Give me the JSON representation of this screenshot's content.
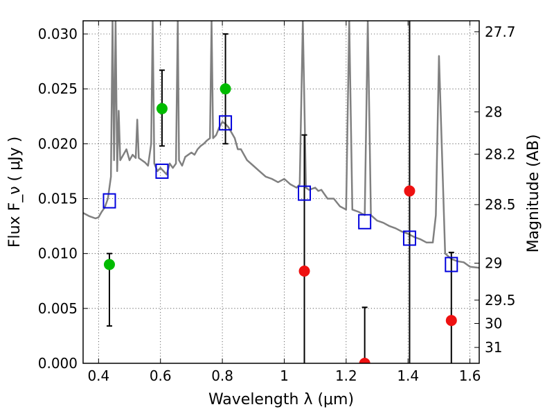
{
  "chart_data": {
    "type": "scatter",
    "xlabel": "Wavelength  λ (μm)",
    "ylabel": "Flux  F_ν  ( μJy )",
    "ylabel_right": "Magnitude (AB)",
    "xlim": [
      0.35,
      1.63
    ],
    "ylim": [
      0.0,
      0.0312
    ],
    "x_ticks": [
      0.4,
      0.6,
      0.8,
      1.0,
      1.2,
      1.4,
      1.6
    ],
    "x_tick_labels": [
      "0.4",
      "0.6",
      "0.8",
      "1",
      "1.2",
      "1.4",
      "1.6"
    ],
    "y_ticks": [
      0.0,
      0.005,
      0.01,
      0.015,
      0.02,
      0.025,
      0.03
    ],
    "y_tick_labels": [
      "0.000",
      "0.005",
      "0.010",
      "0.015",
      "0.020",
      "0.025",
      "0.030"
    ],
    "mag_ticks": [
      27.7,
      28,
      28.2,
      28.5,
      29,
      29.5,
      30,
      31
    ],
    "mag_tick_labels": [
      "27.7",
      "28",
      "28.2",
      "28.5",
      "29",
      "29.5",
      "30",
      "31"
    ],
    "grid": true,
    "colors": {
      "sed": "#808080",
      "detection": "#00bb00",
      "upper_limit": "#ee1111",
      "model": "#0000dd",
      "errorbar": "#000000"
    },
    "series": [
      {
        "type": "line",
        "color": "#808080",
        "x": [
          0.35,
          0.37,
          0.39,
          0.4,
          0.41,
          0.42,
          0.43,
          0.44,
          0.445,
          0.45,
          0.455,
          0.46,
          0.465,
          0.47,
          0.48,
          0.49,
          0.5,
          0.51,
          0.52,
          0.525,
          0.53,
          0.54,
          0.55,
          0.56,
          0.57,
          0.575,
          0.58,
          0.59,
          0.6,
          0.61,
          0.62,
          0.63,
          0.64,
          0.65,
          0.656,
          0.66,
          0.67,
          0.68,
          0.69,
          0.7,
          0.71,
          0.72,
          0.73,
          0.74,
          0.75,
          0.76,
          0.765,
          0.77,
          0.78,
          0.79,
          0.8,
          0.81,
          0.82,
          0.83,
          0.84,
          0.85,
          0.86,
          0.88,
          0.9,
          0.92,
          0.94,
          0.96,
          0.98,
          1.0,
          1.02,
          1.04,
          1.05,
          1.06,
          1.07,
          1.08,
          1.1,
          1.11,
          1.12,
          1.14,
          1.16,
          1.18,
          1.2,
          1.21,
          1.22,
          1.24,
          1.26,
          1.27,
          1.28,
          1.3,
          1.32,
          1.34,
          1.36,
          1.38,
          1.4,
          1.42,
          1.44,
          1.46,
          1.48,
          1.49,
          1.5,
          1.52,
          1.54,
          1.56,
          1.58,
          1.6,
          1.63
        ],
        "y": [
          0.0137,
          0.0134,
          0.0132,
          0.0133,
          0.0138,
          0.0142,
          0.015,
          0.017,
          0.0312,
          0.0185,
          0.0312,
          0.0175,
          0.023,
          0.0185,
          0.019,
          0.0195,
          0.0185,
          0.019,
          0.0187,
          0.0222,
          0.0187,
          0.0185,
          0.0183,
          0.018,
          0.02,
          0.0312,
          0.0182,
          0.0175,
          0.0178,
          0.0175,
          0.0172,
          0.0182,
          0.0178,
          0.0182,
          0.0312,
          0.0185,
          0.018,
          0.0188,
          0.019,
          0.0192,
          0.019,
          0.0195,
          0.0198,
          0.02,
          0.0203,
          0.0205,
          0.0312,
          0.0205,
          0.0208,
          0.0215,
          0.022,
          0.0218,
          0.0215,
          0.021,
          0.0205,
          0.0195,
          0.0195,
          0.0185,
          0.018,
          0.0175,
          0.017,
          0.0168,
          0.0165,
          0.0168,
          0.0163,
          0.016,
          0.0163,
          0.0312,
          0.016,
          0.0158,
          0.016,
          0.0157,
          0.0158,
          0.015,
          0.015,
          0.0143,
          0.014,
          0.0312,
          0.014,
          0.0138,
          0.0135,
          0.0312,
          0.0135,
          0.013,
          0.0128,
          0.0125,
          0.0123,
          0.012,
          0.0118,
          0.0115,
          0.0113,
          0.011,
          0.011,
          0.0135,
          0.028,
          0.01,
          0.0095,
          0.0093,
          0.0092,
          0.0088,
          0.0087
        ]
      },
      {
        "type": "scatter",
        "color": "#00bb00",
        "marker": "circle",
        "x": [
          0.435,
          0.605,
          0.81
        ],
        "y": [
          0.009,
          0.0232,
          0.025
        ],
        "yerr_low": [
          0.0034,
          0.0198,
          0.02
        ],
        "yerr_high": [
          0.01,
          0.0267,
          0.03
        ]
      },
      {
        "type": "scatter",
        "color": "#ee1111",
        "marker": "circle",
        "x": [
          1.065,
          1.26,
          1.405,
          1.54
        ],
        "y": [
          0.0084,
          0.0,
          0.0157,
          0.0039
        ],
        "yerr_low": [
          0.0,
          0.0,
          0.0,
          0.0
        ],
        "yerr_high": [
          0.0208,
          0.0051,
          0.0312,
          0.0101
        ]
      },
      {
        "type": "scatter",
        "color": "#0000dd",
        "marker": "square-open",
        "x": [
          0.435,
          0.605,
          0.81,
          1.065,
          1.26,
          1.405,
          1.54
        ],
        "y": [
          0.0148,
          0.0175,
          0.0219,
          0.0155,
          0.0129,
          0.0114,
          0.009
        ]
      }
    ]
  }
}
